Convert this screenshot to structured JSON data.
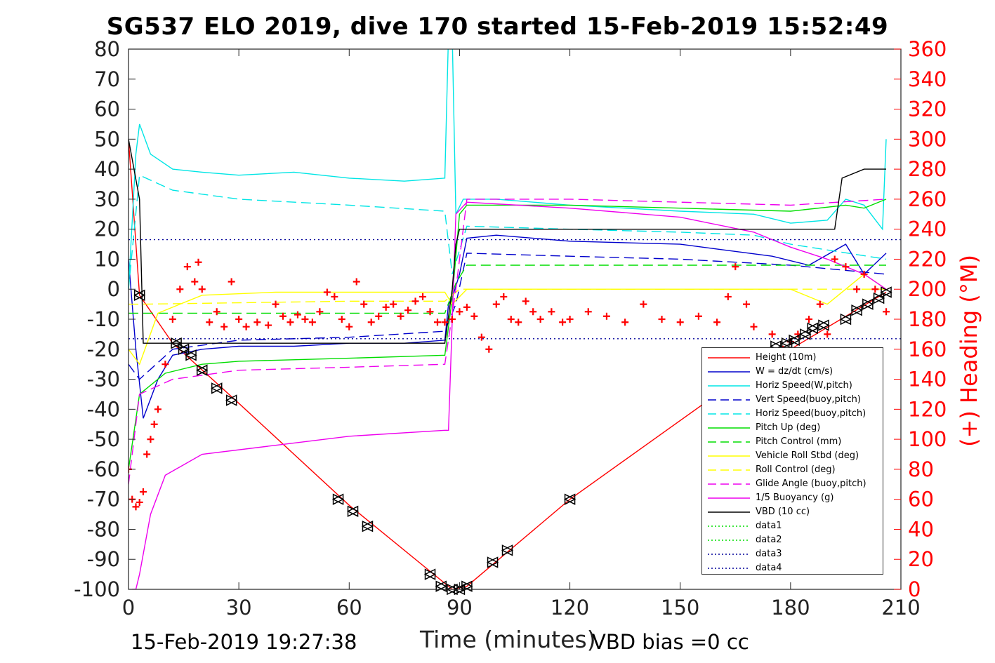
{
  "title": "SG537 ELO 2019, dive 170 started 15-Feb-2019 15:52:49",
  "footer": {
    "left": "15-Feb-2019 19:27:38",
    "right": "VBD bias =0 cc"
  },
  "chart_data": {
    "type": "line",
    "xlabel": "Time (minutes)",
    "ylabel_left": "",
    "ylabel_right": "(+) Heading (°M)",
    "xlim": [
      0,
      210
    ],
    "ylim_left": [
      -100,
      80
    ],
    "ylim_right": [
      0,
      360
    ],
    "x_ticks": [
      0,
      30,
      60,
      90,
      120,
      150,
      180,
      210
    ],
    "y_ticks_left": [
      80,
      70,
      60,
      50,
      40,
      30,
      20,
      10,
      0,
      -10,
      -20,
      -30,
      -40,
      -50,
      -60,
      -70,
      -80,
      -90,
      -100
    ],
    "y_ticks_right": [
      360,
      340,
      320,
      300,
      280,
      260,
      240,
      220,
      200,
      180,
      160,
      140,
      120,
      100,
      80,
      60,
      40,
      20,
      0
    ],
    "grid": false,
    "legend_position": "lower-right",
    "series": [
      {
        "name": "Height (10m)",
        "color": "#ff0000",
        "style": "solid",
        "x": [
          0,
          3,
          12,
          30,
          60,
          88,
          92,
          120,
          160,
          180,
          206
        ],
        "y": [
          50,
          -2,
          -18,
          -38,
          -72,
          -100,
          -99,
          -70,
          -35,
          -20,
          -1
        ]
      },
      {
        "name": "W = dz/dt (cm/s)",
        "color": "#0000cc",
        "style": "solid",
        "x": [
          0,
          2,
          4,
          8,
          12,
          20,
          30,
          45,
          60,
          75,
          86,
          87,
          88,
          90,
          92,
          100,
          120,
          150,
          175,
          185,
          195,
          200,
          206
        ],
        "y": [
          10,
          -20,
          -43,
          -30,
          -22,
          -20,
          -19,
          -19,
          -18,
          -18,
          -17,
          -5,
          -3,
          5,
          17,
          18,
          16,
          15,
          11,
          8,
          15,
          5,
          12
        ]
      },
      {
        "name": "Horiz Speed(W,pitch)",
        "color": "#00e5e5",
        "style": "solid",
        "x": [
          0,
          2,
          3,
          6,
          12,
          20,
          30,
          45,
          60,
          75,
          86,
          87,
          88,
          89,
          91,
          100,
          120,
          150,
          170,
          180,
          190,
          195,
          200,
          205,
          206
        ],
        "y": [
          0,
          45,
          55,
          45,
          40,
          39,
          38,
          39,
          37,
          36,
          37,
          85,
          85,
          25,
          30,
          30,
          28,
          26,
          25,
          22,
          23,
          30,
          28,
          20,
          50
        ]
      },
      {
        "name": "Vert Speed(buoy,pitch)",
        "color": "#0000cc",
        "style": "dashed",
        "x": [
          0,
          3,
          12,
          30,
          60,
          86,
          89,
          92,
          120,
          150,
          180,
          206
        ],
        "y": [
          -25,
          -30,
          -20,
          -17,
          -16,
          -14,
          -5,
          12,
          11,
          10,
          8,
          5
        ]
      },
      {
        "name": "Horiz Speed(buoy,pitch)",
        "color": "#00e5e5",
        "style": "dashed",
        "x": [
          0,
          3,
          12,
          30,
          60,
          86,
          88,
          92,
          120,
          150,
          170,
          180,
          206
        ],
        "y": [
          0,
          38,
          33,
          30,
          28,
          26,
          5,
          21,
          20,
          19,
          18,
          15,
          10
        ]
      },
      {
        "name": "Pitch Up (deg)",
        "color": "#00dd00",
        "style": "solid",
        "x": [
          0,
          3,
          10,
          20,
          30,
          60,
          86,
          88,
          90,
          92,
          120,
          150,
          180,
          195,
          200,
          206
        ],
        "y": [
          -60,
          -35,
          -28,
          -25,
          -24,
          -23,
          -22,
          -3,
          25,
          28,
          28,
          27,
          26,
          28,
          27,
          30
        ]
      },
      {
        "name": "Pitch Control (mm)",
        "color": "#00dd00",
        "style": "dashed",
        "x": [
          0,
          3,
          30,
          86,
          89,
          92,
          206
        ],
        "y": [
          -8,
          -8,
          -8,
          -8,
          2,
          8,
          8
        ]
      },
      {
        "name": "Vehicle Roll Stbd (deg)",
        "color": "#ffff00",
        "style": "solid",
        "x": [
          0,
          3,
          8,
          20,
          40,
          60,
          86,
          88,
          92,
          120,
          150,
          180,
          190,
          200,
          206
        ],
        "y": [
          -20,
          -25,
          -8,
          -2,
          -1,
          -1,
          -1,
          -5,
          0,
          0,
          0,
          0,
          -5,
          5,
          0
        ]
      },
      {
        "name": "Roll Control (deg)",
        "color": "#ffff00",
        "style": "dashed",
        "x": [
          0,
          3,
          60,
          86,
          90,
          206
        ],
        "y": [
          -5,
          -5,
          -4,
          -4,
          0,
          0
        ]
      },
      {
        "name": "Glide Angle (buoy,pitch)",
        "color": "#ee00ee",
        "style": "dashed",
        "x": [
          0,
          3,
          12,
          30,
          60,
          86,
          89,
          92,
          120,
          150,
          180,
          206
        ],
        "y": [
          -65,
          -35,
          -30,
          -27,
          -26,
          -25,
          0,
          30,
          30,
          29,
          28,
          30
        ]
      },
      {
        "name": "1/5 Buoyancy (g)",
        "color": "#ee00ee",
        "style": "solid",
        "x": [
          1,
          2,
          3,
          6,
          10,
          20,
          40,
          60,
          86,
          87,
          89,
          92,
          120,
          150,
          170,
          180,
          190,
          200,
          206
        ],
        "y": [
          -100,
          -100,
          -95,
          -75,
          -62,
          -55,
          -52,
          -49,
          -47,
          -47,
          25,
          29,
          27,
          24,
          19,
          14,
          10,
          5,
          0
        ]
      },
      {
        "name": "VBD (10 cc)",
        "color": "#000000",
        "style": "solid",
        "x": [
          0,
          3,
          4,
          86,
          88,
          89,
          90,
          92,
          170,
          192,
          194,
          200,
          206
        ],
        "y": [
          50,
          30,
          -18,
          -18,
          0,
          15,
          20,
          20,
          20,
          20,
          37,
          40,
          40
        ]
      },
      {
        "name": "data1",
        "color": "#00dd00",
        "style": "dotted",
        "x": [],
        "y": []
      },
      {
        "name": "data2",
        "color": "#00dd00",
        "style": "dotted",
        "x": [],
        "y": []
      },
      {
        "name": "data3",
        "color": "#000099",
        "style": "dotted",
        "x": [
          0,
          210
        ],
        "y": [
          16.5,
          16.5
        ]
      },
      {
        "name": "data4",
        "color": "#000099",
        "style": "dotted",
        "x": [
          0,
          210
        ],
        "y": [
          -16.5,
          -16.5
        ]
      }
    ],
    "heading": {
      "axis": "right",
      "color": "#ff0000",
      "marker": "+",
      "x": [
        0,
        1,
        2,
        3,
        4,
        5,
        6,
        7,
        8,
        10,
        12,
        14,
        16,
        18,
        19,
        20,
        22,
        24,
        26,
        28,
        30,
        32,
        35,
        38,
        40,
        42,
        44,
        46,
        48,
        50,
        52,
        54,
        56,
        58,
        60,
        62,
        64,
        66,
        68,
        70,
        72,
        74,
        76,
        78,
        80,
        82,
        84,
        86,
        88,
        90,
        92,
        94,
        96,
        98,
        100,
        102,
        104,
        106,
        108,
        110,
        112,
        115,
        118,
        120,
        125,
        130,
        135,
        140,
        145,
        150,
        155,
        160,
        163,
        165,
        168,
        170,
        175,
        178,
        180,
        182,
        185,
        188,
        190,
        192,
        195,
        198,
        200,
        203,
        206
      ],
      "y": [
        80,
        60,
        55,
        58,
        65,
        90,
        100,
        110,
        120,
        150,
        180,
        200,
        215,
        205,
        218,
        200,
        178,
        185,
        175,
        205,
        180,
        175,
        178,
        176,
        190,
        182,
        178,
        183,
        180,
        178,
        185,
        198,
        195,
        180,
        175,
        205,
        190,
        178,
        182,
        188,
        190,
        182,
        186,
        192,
        195,
        185,
        178,
        178,
        180,
        185,
        188,
        182,
        168,
        160,
        190,
        195,
        180,
        178,
        192,
        185,
        180,
        185,
        178,
        180,
        185,
        182,
        178,
        190,
        180,
        178,
        182,
        178,
        195,
        215,
        190,
        175,
        170,
        160,
        165,
        170,
        180,
        190,
        170,
        220,
        215,
        200,
        210,
        200,
        185
      ]
    },
    "depth_markers": {
      "axis": "left",
      "x": [
        3,
        13,
        15,
        17,
        20,
        24,
        28,
        57,
        61,
        65,
        82,
        85,
        88,
        90,
        92,
        99,
        103,
        120,
        176,
        179,
        181,
        184,
        186,
        189,
        195,
        198,
        201,
        204,
        206
      ],
      "y": [
        -2,
        -18,
        -20,
        -22,
        -27,
        -33,
        -37,
        -70,
        -74,
        -79,
        -95,
        -99,
        -100,
        -100,
        -99,
        -91,
        -87,
        -70,
        -19,
        -18,
        -17,
        -15,
        -13,
        -12,
        -10,
        -7,
        -5,
        -3,
        -1
      ]
    }
  }
}
